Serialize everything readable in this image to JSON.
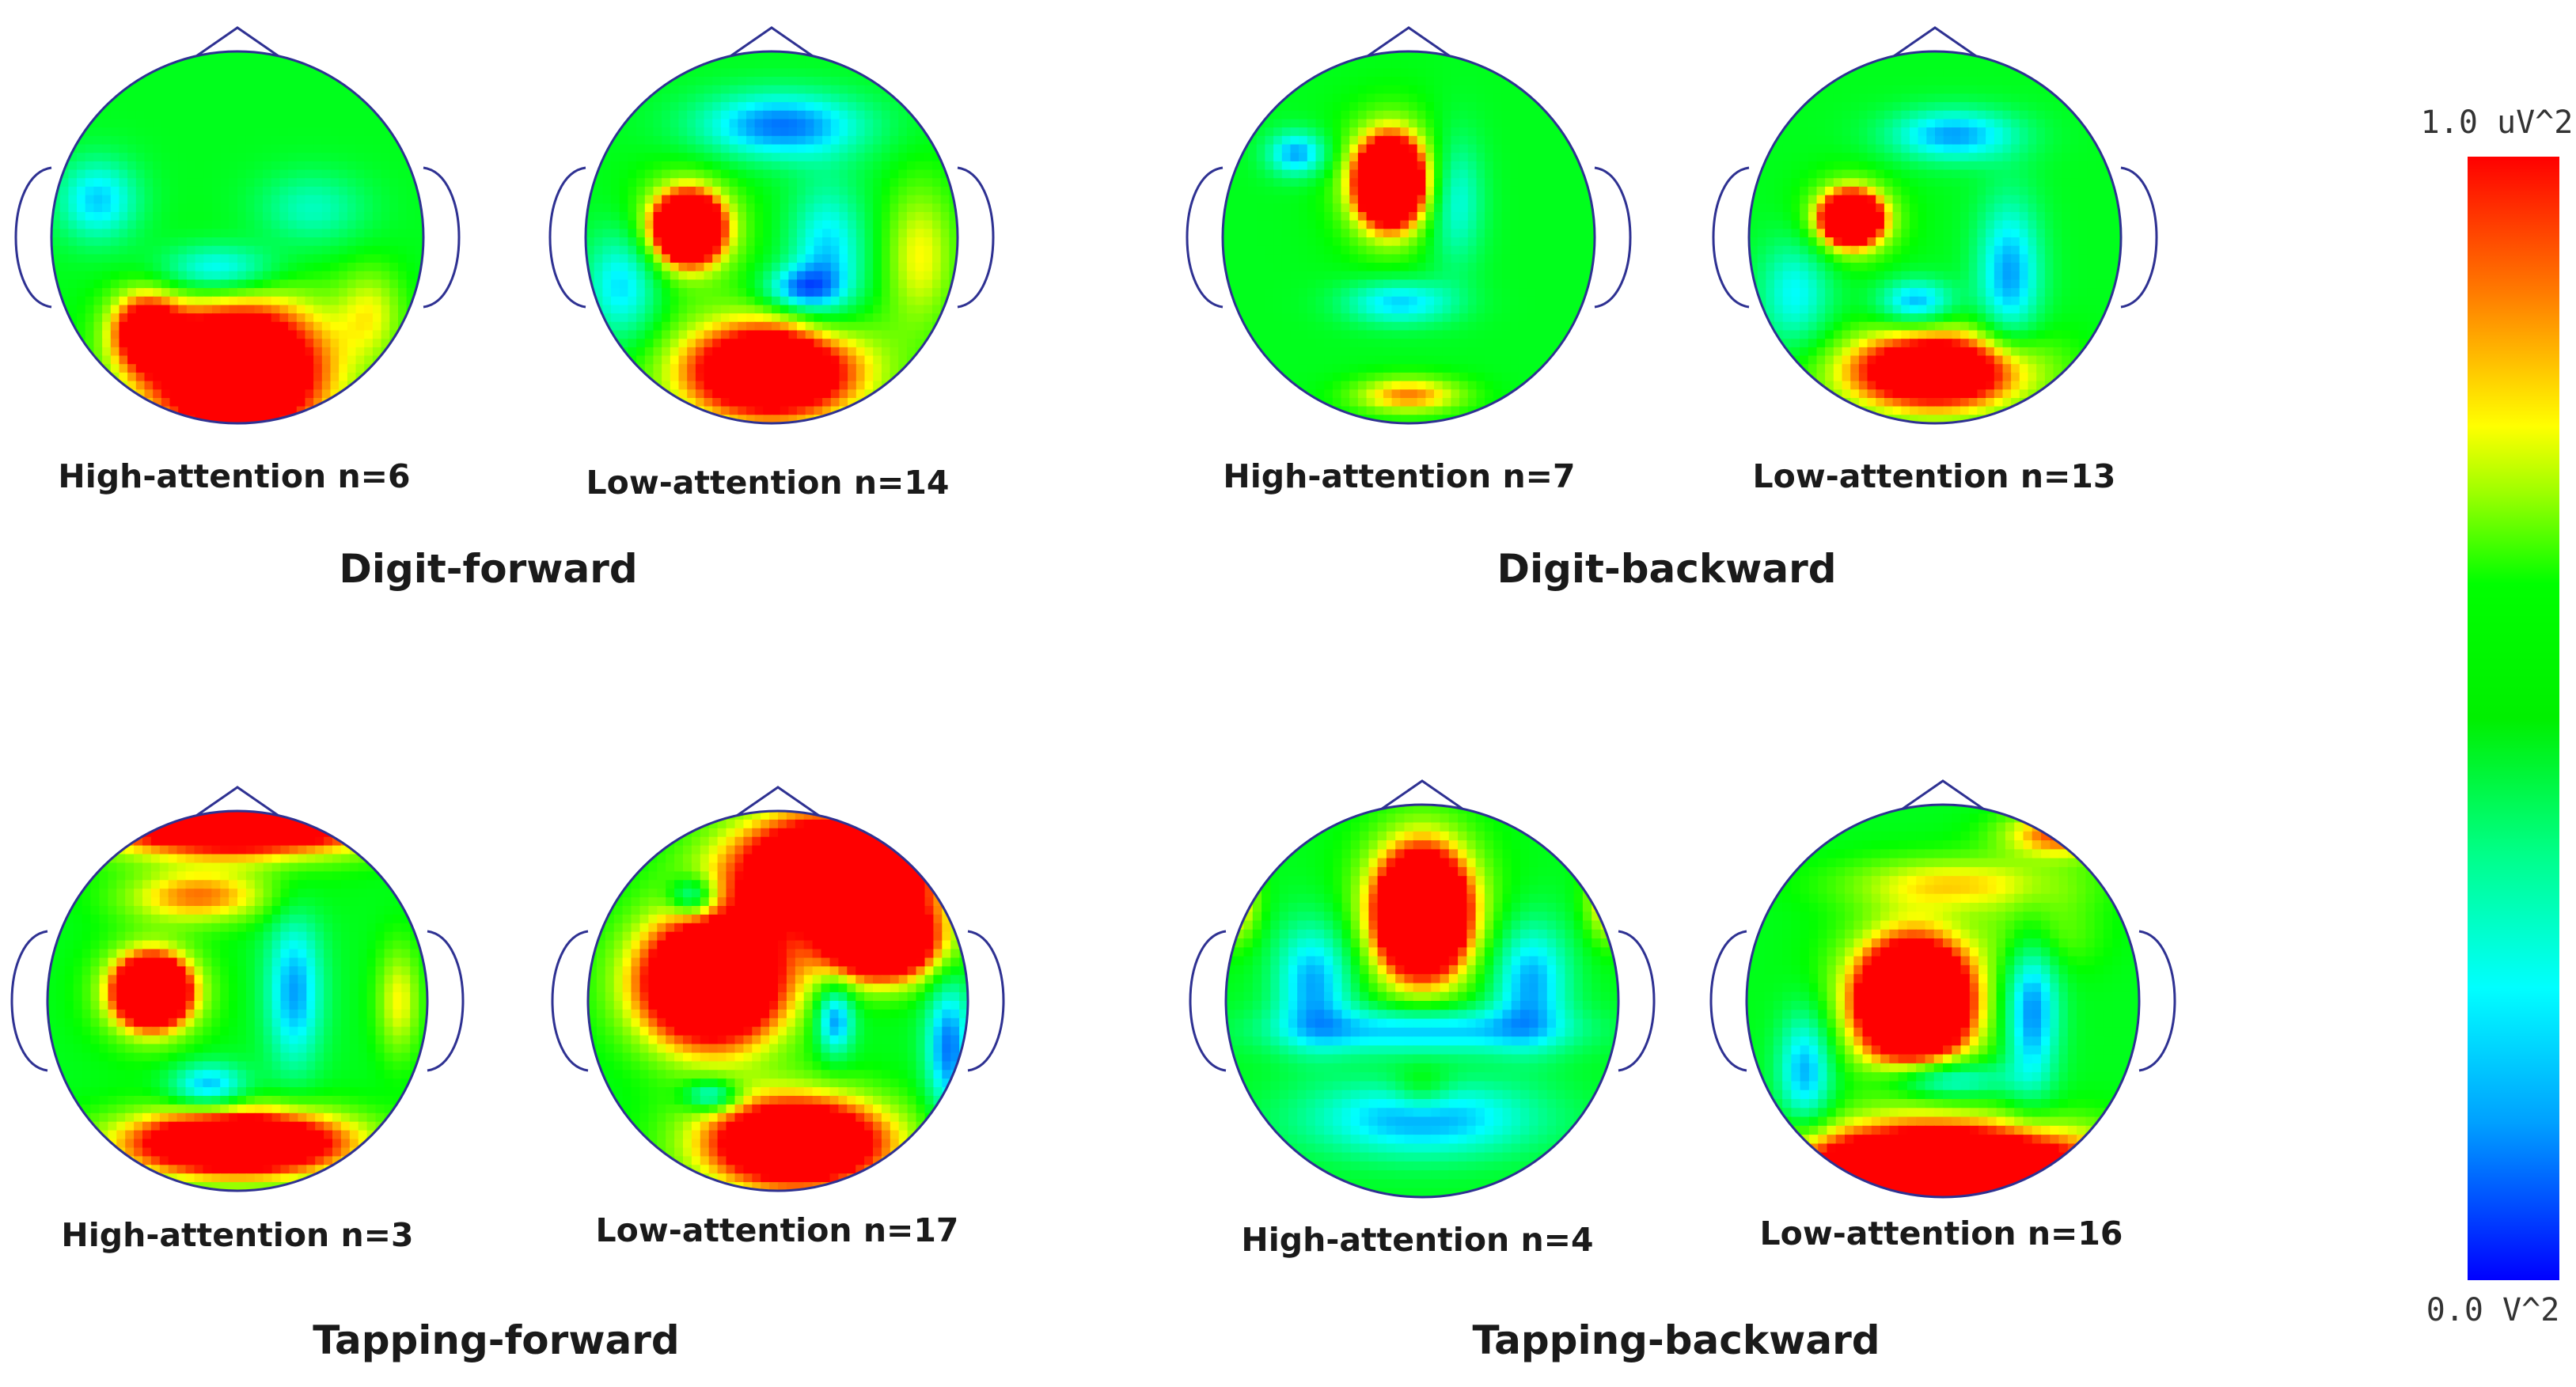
{
  "scale": {
    "max_label": "1.0 uV^2",
    "min_label": "0.0  V^2"
  },
  "panels": [
    {
      "group": "Digit-forward",
      "maps": [
        {
          "caption": "High-attention n=6",
          "blobs": [
            [
              0.0,
              0.72,
              0.5,
              0.4,
              0.85
            ],
            [
              -0.5,
              0.5,
              0.18,
              0.2,
              0.5
            ],
            [
              0.72,
              0.4,
              0.18,
              0.25,
              0.2
            ],
            [
              -0.1,
              0.18,
              0.32,
              0.14,
              -0.35
            ],
            [
              -0.75,
              -0.2,
              0.22,
              0.22,
              -0.3
            ],
            [
              0.4,
              -0.15,
              0.3,
              0.2,
              -0.18
            ]
          ]
        },
        {
          "caption": "Low-attention n=14",
          "blobs": [
            [
              -0.45,
              -0.05,
              0.17,
              0.17,
              0.95
            ],
            [
              -0.45,
              -0.05,
              0.3,
              0.3,
              0.25
            ],
            [
              0.0,
              0.72,
              0.5,
              0.28,
              0.8
            ],
            [
              0.05,
              -0.6,
              0.45,
              0.18,
              -0.4
            ],
            [
              0.15,
              0.28,
              0.2,
              0.12,
              -0.35
            ],
            [
              0.3,
              0.1,
              0.2,
              0.38,
              -0.3
            ],
            [
              0.8,
              0.1,
              0.2,
              0.4,
              0.25
            ],
            [
              -0.8,
              0.25,
              0.2,
              0.3,
              -0.3
            ]
          ]
        },
        {
          "caption": "High-attention n=7",
          "blobs": [
            [
              -0.1,
              -0.3,
              0.17,
              0.22,
              0.95
            ],
            [
              -0.1,
              -0.3,
              0.28,
              0.35,
              0.25
            ],
            [
              -0.6,
              -0.45,
              0.16,
              0.12,
              -0.35
            ],
            [
              0.25,
              -0.2,
              0.15,
              0.35,
              -0.25
            ],
            [
              -0.05,
              0.35,
              0.3,
              0.12,
              -0.3
            ],
            [
              0.0,
              0.85,
              0.3,
              0.1,
              0.35
            ]
          ]
        },
        {
          "caption": "Low-attention n=13",
          "blobs": [
            [
              -0.45,
              -0.1,
              0.15,
              0.13,
              0.9
            ],
            [
              -0.45,
              -0.1,
              0.25,
              0.22,
              0.25
            ],
            [
              0.0,
              0.72,
              0.5,
              0.22,
              0.75
            ],
            [
              0.1,
              -0.55,
              0.35,
              0.14,
              -0.35
            ],
            [
              0.4,
              0.2,
              0.17,
              0.4,
              -0.35
            ],
            [
              -0.1,
              0.35,
              0.2,
              0.12,
              -0.35
            ],
            [
              -0.75,
              0.3,
              0.2,
              0.3,
              -0.25
            ]
          ]
        }
      ]
    },
    {
      "group": "Digit-backward",
      "maps": []
    },
    {
      "group": "Tapping-forward",
      "maps": [
        {
          "caption": "High-attention n=3",
          "blobs": [
            [
              -0.45,
              -0.05,
              0.18,
              0.17,
              0.95
            ],
            [
              -0.45,
              -0.05,
              0.3,
              0.28,
              0.25
            ],
            [
              0.0,
              -0.95,
              0.75,
              0.18,
              0.9
            ],
            [
              -0.2,
              -0.55,
              0.4,
              0.14,
              0.35
            ],
            [
              0.0,
              0.75,
              0.6,
              0.18,
              0.85
            ],
            [
              0.3,
              -0.05,
              0.15,
              0.4,
              -0.35
            ],
            [
              -0.15,
              0.45,
              0.2,
              0.12,
              -0.35
            ],
            [
              0.85,
              0.0,
              0.12,
              0.3,
              0.25
            ]
          ]
        },
        {
          "caption": "Low-attention n=17",
          "blobs": [
            [
              -0.35,
              -0.1,
              0.4,
              0.35,
              0.95
            ],
            [
              0.3,
              -0.7,
              0.55,
              0.3,
              0.9
            ],
            [
              0.1,
              0.75,
              0.5,
              0.25,
              0.85
            ],
            [
              0.55,
              -0.3,
              0.3,
              0.2,
              0.85
            ],
            [
              0.3,
              0.1,
              0.1,
              0.18,
              -0.4
            ],
            [
              0.9,
              0.25,
              0.12,
              0.35,
              -0.4
            ],
            [
              -0.45,
              -0.55,
              0.12,
              0.1,
              -0.35
            ],
            [
              -0.35,
              0.5,
              0.14,
              0.08,
              -0.35
            ]
          ]
        },
        {
          "caption": "High-attention n=4",
          "blobs": [
            [
              0.0,
              -0.45,
              0.22,
              0.3,
              0.95
            ],
            [
              0.0,
              -0.45,
              0.35,
              0.45,
              0.25
            ],
            [
              -0.55,
              -0.1,
              0.2,
              0.3,
              -0.35
            ],
            [
              0.55,
              -0.1,
              0.2,
              0.3,
              -0.35
            ],
            [
              0.0,
              0.15,
              0.7,
              0.12,
              -0.35
            ],
            [
              0.0,
              0.6,
              0.6,
              0.2,
              -0.35
            ],
            [
              -0.95,
              -0.5,
              0.12,
              0.2,
              0.3
            ],
            [
              0.95,
              -0.5,
              0.12,
              0.2,
              0.3
            ],
            [
              0.0,
              0.45,
              0.15,
              0.12,
              0.15
            ]
          ]
        },
        {
          "caption": "Low-attention n=16",
          "blobs": [
            [
              -0.15,
              0.0,
              0.26,
              0.28,
              0.95
            ],
            [
              -0.15,
              0.0,
              0.4,
              0.42,
              0.3
            ],
            [
              0.0,
              0.85,
              0.8,
              0.22,
              0.95
            ],
            [
              0.1,
              -0.6,
              0.6,
              0.14,
              0.25
            ],
            [
              0.5,
              -0.35,
              0.3,
              0.2,
              0.15
            ],
            [
              0.45,
              0.05,
              0.14,
              0.4,
              -0.4
            ],
            [
              -0.7,
              0.35,
              0.14,
              0.3,
              -0.35
            ],
            [
              0.0,
              0.4,
              0.3,
              0.1,
              -0.35
            ],
            [
              0.6,
              -0.85,
              0.3,
              0.12,
              0.4
            ]
          ]
        }
      ]
    },
    {
      "group": "Tapping-backward",
      "maps": []
    }
  ]
}
